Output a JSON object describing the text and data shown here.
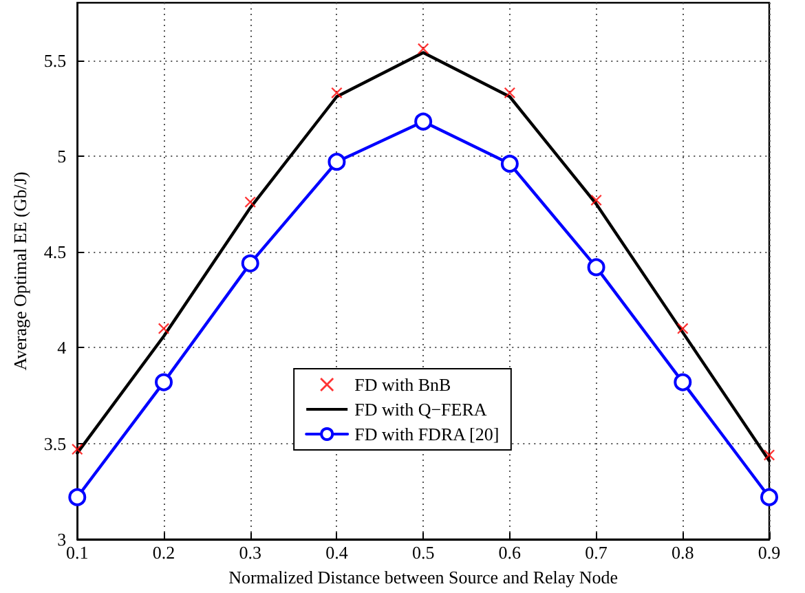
{
  "chart_data": {
    "type": "line",
    "xlabel": "Normalized Distance between Source and Relay Node",
    "ylabel": "Average Optimal EE (Gb/J)",
    "x": [
      0.1,
      0.2,
      0.3,
      0.4,
      0.5,
      0.6,
      0.7,
      0.8,
      0.9
    ],
    "series": [
      {
        "name": "FD with BnB",
        "type": "scatter",
        "marker": "cross",
        "color": "#ff0000",
        "values": [
          3.47,
          4.1,
          4.76,
          5.33,
          5.56,
          5.33,
          4.77,
          4.1,
          3.44
        ]
      },
      {
        "name": "FD with Q−FERA",
        "type": "line",
        "marker": "none",
        "color": "#000000",
        "values": [
          3.45,
          4.06,
          4.73,
          5.31,
          5.54,
          5.31,
          4.75,
          4.08,
          3.41
        ]
      },
      {
        "name": "FD with FDRA [20]",
        "type": "line",
        "marker": "circle",
        "color": "#0000ff",
        "values": [
          3.22,
          3.82,
          4.44,
          4.97,
          5.18,
          4.96,
          4.42,
          3.82,
          3.22
        ]
      }
    ],
    "xlim": [
      0.1,
      0.9
    ],
    "xticks": [
      0.1,
      0.2,
      0.3,
      0.4,
      0.5,
      0.6,
      0.7,
      0.8,
      0.9
    ],
    "ylim": [
      3,
      5.8
    ],
    "yticks": [
      3,
      3.5,
      4,
      4.5,
      5,
      5.5
    ],
    "grid": true,
    "legend": "bottom",
    "line_style": "solid"
  }
}
